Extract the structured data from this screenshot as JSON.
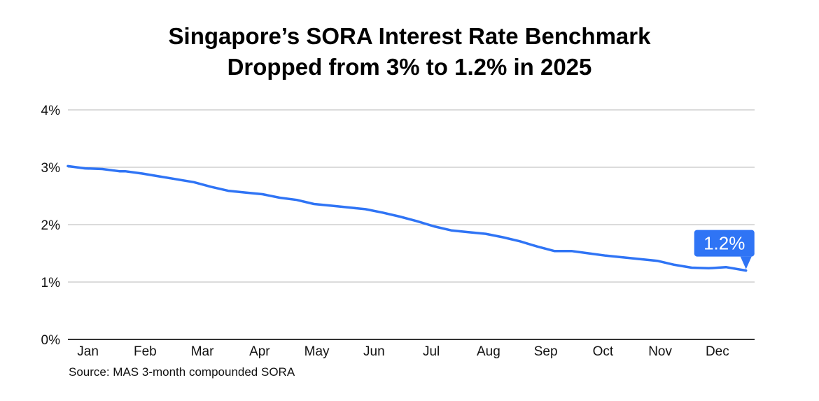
{
  "chart_data": {
    "type": "line",
    "title": "Singapore’s SORA Interest Rate Benchmark\nDropped from 3% to 1.2% in 2025",
    "title_lines": [
      "Singapore’s SORA Interest Rate Benchmark",
      "Dropped from 3% to 1.2% in 2025"
    ],
    "xlabel": "",
    "ylabel": "",
    "ylim": [
      0,
      4
    ],
    "yticks": [
      0,
      1,
      2,
      3,
      4
    ],
    "ytick_labels": [
      "0%",
      "1%",
      "2%",
      "3%",
      "4%"
    ],
    "xlim": [
      0,
      12
    ],
    "categories": [
      "Jan",
      "Feb",
      "Mar",
      "Apr",
      "May",
      "Jun",
      "Jul",
      "Aug",
      "Sep",
      "Oct",
      "Nov",
      "Dec"
    ],
    "grid": true,
    "series": [
      {
        "name": "3-month compounded SORA",
        "color": "#2F74F5",
        "x": [
          0,
          0.3,
          0.6,
          0.9,
          1.0,
          1.3,
          1.6,
          1.9,
          2.2,
          2.5,
          2.8,
          3.1,
          3.4,
          3.7,
          4.0,
          4.3,
          4.6,
          4.9,
          5.2,
          5.5,
          5.8,
          6.1,
          6.4,
          6.7,
          7.0,
          7.3,
          7.6,
          7.9,
          8.2,
          8.5,
          8.8,
          9.1,
          9.4,
          9.7,
          10.0,
          10.3,
          10.6,
          10.9,
          11.2,
          11.5,
          11.85
        ],
        "values": [
          3.02,
          2.98,
          2.97,
          2.93,
          2.93,
          2.89,
          2.84,
          2.79,
          2.74,
          2.66,
          2.59,
          2.56,
          2.53,
          2.47,
          2.43,
          2.36,
          2.33,
          2.3,
          2.27,
          2.21,
          2.14,
          2.06,
          1.97,
          1.9,
          1.87,
          1.84,
          1.78,
          1.71,
          1.62,
          1.54,
          1.54,
          1.5,
          1.46,
          1.43,
          1.4,
          1.37,
          1.3,
          1.25,
          1.24,
          1.26,
          1.2
        ],
        "end_label": "1.2%"
      }
    ],
    "annotations": [
      {
        "text": "1.2%",
        "x": 11.85,
        "y": 1.2
      }
    ],
    "source": "Source: MAS 3-month compounded SORA"
  }
}
